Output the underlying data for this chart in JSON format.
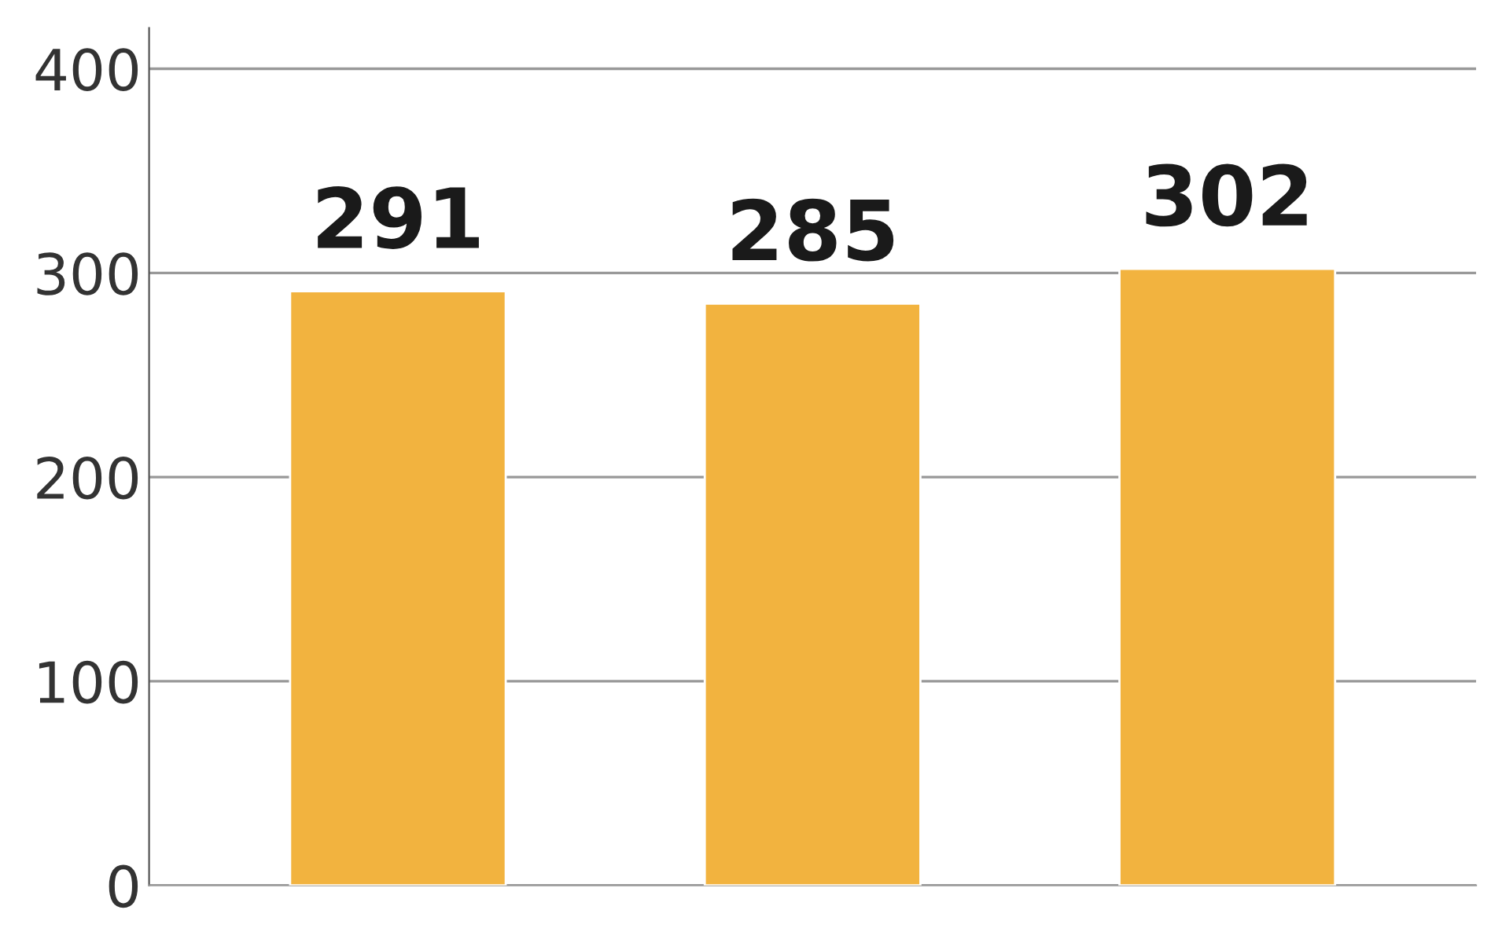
{
  "chart_data": {
    "type": "bar",
    "categories": [
      null,
      null,
      null
    ],
    "values": [
      291,
      285,
      302
    ],
    "color": "#f2b33f",
    "ylim": [
      0,
      420
    ],
    "yticks": [
      0,
      100,
      200,
      300,
      400
    ],
    "grid": "y",
    "data_labels": true
  }
}
